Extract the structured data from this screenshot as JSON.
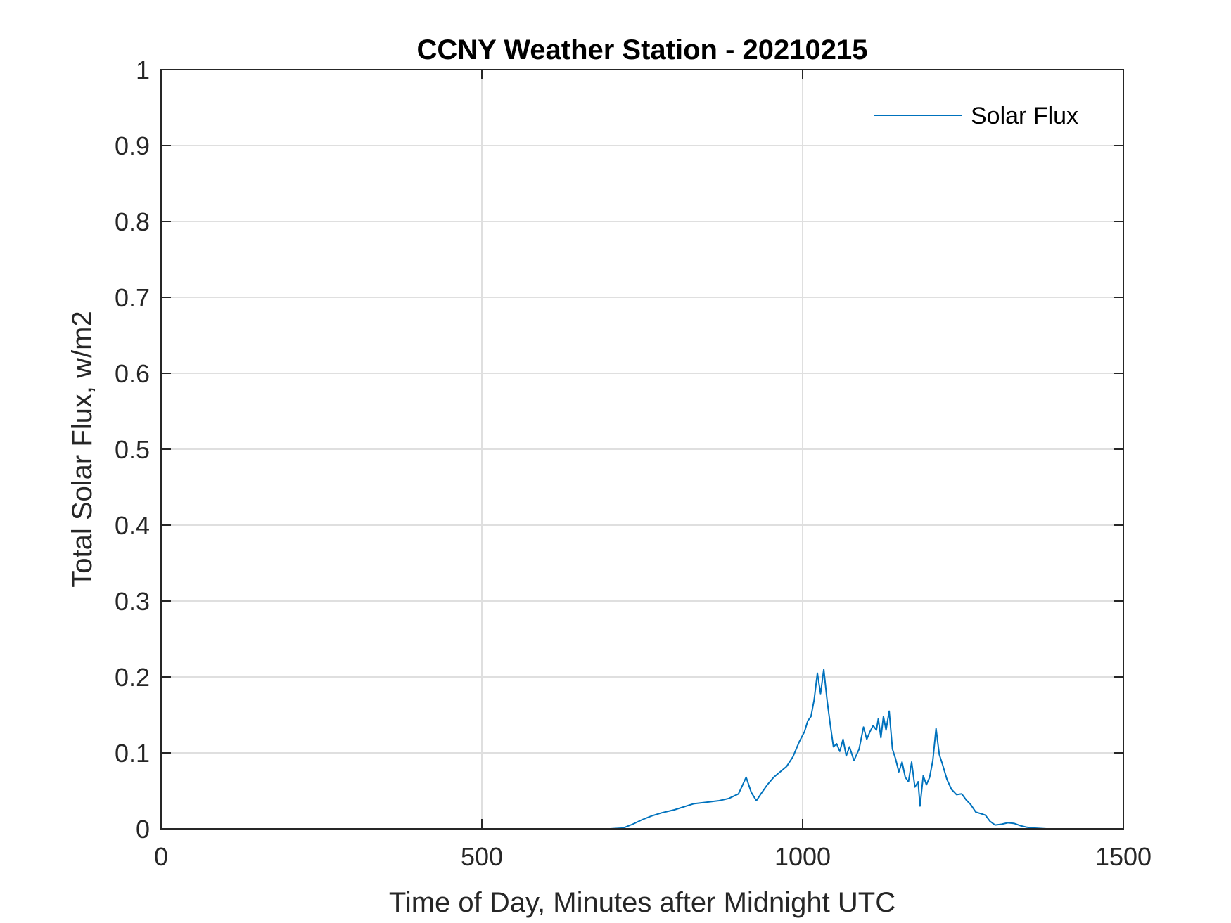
{
  "chart_data": {
    "type": "line",
    "title": "CCNY Weather Station - 20210215",
    "xlabel": "Time of Day, Minutes after Midnight UTC",
    "ylabel": "Total Solar Flux, w/m2",
    "xlim": [
      0,
      1500
    ],
    "ylim": [
      0,
      1
    ],
    "xticks": [
      0,
      500,
      1000,
      1500
    ],
    "xtick_labels": [
      "0",
      "500",
      "1000",
      "1500"
    ],
    "yticks": [
      0,
      0.1,
      0.2,
      0.3,
      0.4,
      0.5,
      0.6,
      0.7,
      0.8,
      0.9,
      1
    ],
    "ytick_labels": [
      "0",
      "0.1",
      "0.2",
      "0.3",
      "0.4",
      "0.5",
      "0.6",
      "0.7",
      "0.8",
      "0.9",
      "1"
    ],
    "grid": true,
    "legend_position": "top-right",
    "series": [
      {
        "name": "Solar Flux",
        "color": "#0072bd",
        "x": [
          0,
          200,
          400,
          600,
          700,
          720,
          735,
          750,
          765,
          780,
          800,
          815,
          830,
          850,
          870,
          885,
          900,
          905,
          912,
          920,
          928,
          935,
          945,
          955,
          965,
          975,
          985,
          995,
          1003,
          1008,
          1013,
          1018,
          1023,
          1028,
          1033,
          1038,
          1043,
          1048,
          1053,
          1058,
          1063,
          1068,
          1073,
          1080,
          1088,
          1095,
          1100,
          1105,
          1110,
          1115,
          1118,
          1122,
          1126,
          1130,
          1135,
          1140,
          1145,
          1150,
          1155,
          1160,
          1165,
          1170,
          1175,
          1180,
          1183,
          1188,
          1193,
          1198,
          1203,
          1208,
          1213,
          1218,
          1225,
          1232,
          1240,
          1248,
          1255,
          1262,
          1270,
          1278,
          1285,
          1292,
          1300,
          1310,
          1320,
          1330,
          1340,
          1350,
          1360,
          1380,
          1400,
          1430,
          1450
        ],
        "y": [
          0,
          0,
          0,
          0,
          0,
          0.001,
          0.006,
          0.012,
          0.017,
          0.021,
          0.025,
          0.029,
          0.033,
          0.035,
          0.037,
          0.04,
          0.046,
          0.055,
          0.068,
          0.048,
          0.037,
          0.046,
          0.058,
          0.068,
          0.075,
          0.082,
          0.095,
          0.115,
          0.128,
          0.142,
          0.148,
          0.17,
          0.205,
          0.178,
          0.21,
          0.17,
          0.138,
          0.108,
          0.112,
          0.102,
          0.118,
          0.096,
          0.108,
          0.09,
          0.105,
          0.134,
          0.118,
          0.128,
          0.136,
          0.13,
          0.145,
          0.12,
          0.148,
          0.13,
          0.155,
          0.105,
          0.092,
          0.075,
          0.088,
          0.068,
          0.062,
          0.088,
          0.055,
          0.062,
          0.03,
          0.07,
          0.058,
          0.068,
          0.09,
          0.132,
          0.098,
          0.085,
          0.065,
          0.052,
          0.045,
          0.046,
          0.038,
          0.032,
          0.022,
          0.02,
          0.018,
          0.01,
          0.005,
          0.006,
          0.008,
          0.007,
          0.004,
          0.002,
          0.001,
          0,
          0,
          0,
          0
        ]
      }
    ]
  }
}
